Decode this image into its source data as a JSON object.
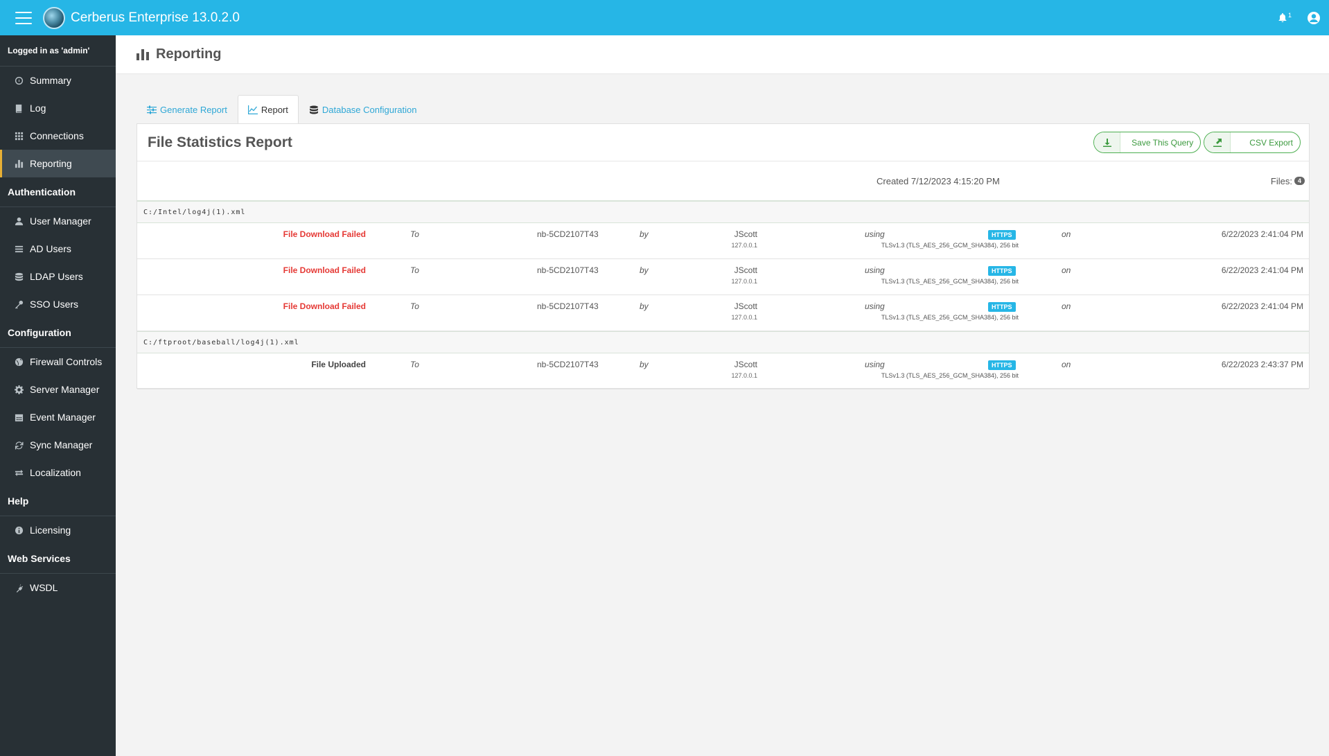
{
  "app": {
    "title": "Cerberus Enterprise 13.0.2.0",
    "notification_count": "1"
  },
  "sidebar": {
    "logged_in": "Logged in as 'admin'",
    "items": [
      {
        "label": "Summary",
        "icon": "dashboard-icon"
      },
      {
        "label": "Log",
        "icon": "book-icon"
      },
      {
        "label": "Connections",
        "icon": "grid-icon"
      },
      {
        "label": "Reporting",
        "icon": "bar-chart-icon",
        "active": true
      }
    ],
    "sections": [
      {
        "title": "Authentication",
        "items": [
          {
            "label": "User Manager",
            "icon": "user-icon"
          },
          {
            "label": "AD Users",
            "icon": "list-icon"
          },
          {
            "label": "LDAP Users",
            "icon": "database-icon"
          },
          {
            "label": "SSO Users",
            "icon": "key-icon"
          }
        ]
      },
      {
        "title": "Configuration",
        "items": [
          {
            "label": "Firewall Controls",
            "icon": "globe-icon"
          },
          {
            "label": "Server Manager",
            "icon": "gear-icon"
          },
          {
            "label": "Event Manager",
            "icon": "calendar-icon"
          },
          {
            "label": "Sync Manager",
            "icon": "refresh-icon"
          },
          {
            "label": "Localization",
            "icon": "exchange-icon"
          }
        ]
      },
      {
        "title": "Help",
        "items": [
          {
            "label": "Licensing",
            "icon": "info-icon"
          }
        ]
      },
      {
        "title": "Web Services",
        "items": [
          {
            "label": "WSDL",
            "icon": "plug-icon"
          }
        ]
      }
    ]
  },
  "page": {
    "title": "Reporting"
  },
  "tabs": [
    {
      "label": "Generate Report",
      "icon": "sliders-icon"
    },
    {
      "label": "Report",
      "icon": "line-chart-icon",
      "active": true
    },
    {
      "label": "Database Configuration",
      "icon": "database-icon"
    }
  ],
  "report": {
    "title": "File Statistics Report",
    "save_label": "Save This Query",
    "csv_label": "CSV Export",
    "created": "Created 7/12/2023 4:15:20 PM",
    "files_label": "Files:",
    "files_count": "4",
    "groups": [
      {
        "path": "C:/Intel/log4j(1).xml",
        "rows": [
          {
            "status": "File Download Failed",
            "status_type": "fail",
            "to": "To",
            "host": "nb-5CD2107T43",
            "by": "by",
            "user": "JScott",
            "ip": "127.0.0.1",
            "using": "using",
            "protocol": "HTTPS",
            "tls": "TLSv1.3 (TLS_AES_256_GCM_SHA384), 256 bit",
            "on": "on",
            "when": "6/22/2023 2:41:04 PM"
          },
          {
            "status": "File Download Failed",
            "status_type": "fail",
            "to": "To",
            "host": "nb-5CD2107T43",
            "by": "by",
            "user": "JScott",
            "ip": "127.0.0.1",
            "using": "using",
            "protocol": "HTTPS",
            "tls": "TLSv1.3 (TLS_AES_256_GCM_SHA384), 256 bit",
            "on": "on",
            "when": "6/22/2023 2:41:04 PM"
          },
          {
            "status": "File Download Failed",
            "status_type": "fail",
            "to": "To",
            "host": "nb-5CD2107T43",
            "by": "by",
            "user": "JScott",
            "ip": "127.0.0.1",
            "using": "using",
            "protocol": "HTTPS",
            "tls": "TLSv1.3 (TLS_AES_256_GCM_SHA384), 256 bit",
            "on": "on",
            "when": "6/22/2023 2:41:04 PM"
          }
        ]
      },
      {
        "path": "C:/ftproot/baseball/log4j(1).xml",
        "rows": [
          {
            "status": "File Uploaded",
            "status_type": "ok",
            "to": "To",
            "host": "nb-5CD2107T43",
            "by": "by",
            "user": "JScott",
            "ip": "127.0.0.1",
            "using": "using",
            "protocol": "HTTPS",
            "tls": "TLSv1.3 (TLS_AES_256_GCM_SHA384), 256 bit",
            "on": "on",
            "when": "6/22/2023 2:43:37 PM"
          }
        ]
      }
    ]
  },
  "colors": {
    "topbar": "#26b6e6",
    "sidebar": "#283035",
    "active_accent": "#e8b035",
    "fail": "#e53935",
    "badge": "#26b6e6",
    "button": "#4caf50"
  }
}
